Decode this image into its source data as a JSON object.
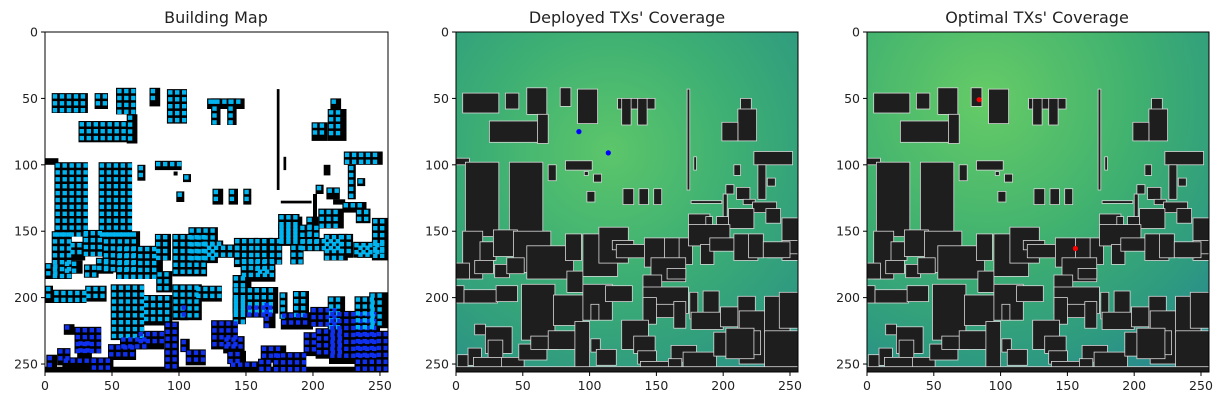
{
  "figure": {
    "panels": [
      {
        "title": "Building Map"
      },
      {
        "title": "Deployed TXs' Coverage"
      },
      {
        "title": "Optimal TXs' Coverage"
      }
    ]
  },
  "chart_data": [
    {
      "type": "heatmap",
      "title": "Building Map",
      "xlabel": "",
      "ylabel": "",
      "xlim": [
        0,
        256
      ],
      "ylim": [
        256,
        0
      ],
      "xticks": [
        0,
        50,
        100,
        150,
        200,
        250
      ],
      "yticks": [
        0,
        50,
        100,
        150,
        200,
        250
      ],
      "grid": false,
      "background_color": "#ffffff",
      "building_color": "#000000",
      "marker_colors": [
        "#00b4f0",
        "#1030f0"
      ]
    },
    {
      "type": "heatmap",
      "title": "Deployed TXs' Coverage",
      "xlabel": "",
      "ylabel": "",
      "xlim": [
        0,
        256
      ],
      "ylim": [
        256,
        0
      ],
      "xticks": [
        0,
        50,
        100,
        150,
        200,
        250
      ],
      "yticks": [
        0,
        50,
        100,
        150,
        200,
        250
      ],
      "grid": false,
      "colormap": [
        "#2a8f8a",
        "#3ba870",
        "#56c36a",
        "#7ad15a"
      ],
      "building_color": "#1e1e1e",
      "transmitters": [
        {
          "x": 92,
          "y": 75,
          "color": "#0000ff"
        },
        {
          "x": 114,
          "y": 91,
          "color": "#0000ff"
        }
      ]
    },
    {
      "type": "heatmap",
      "title": "Optimal TXs' Coverage",
      "xlabel": "",
      "ylabel": "",
      "xlim": [
        0,
        256
      ],
      "ylim": [
        256,
        0
      ],
      "xticks": [
        0,
        50,
        100,
        150,
        200,
        250
      ],
      "yticks": [
        0,
        50,
        100,
        150,
        200,
        250
      ],
      "grid": false,
      "colormap": [
        "#2a8f8a",
        "#3ba870",
        "#56c36a",
        "#7ad15a"
      ],
      "building_color": "#1e1e1e",
      "transmitters": [
        {
          "x": 84,
          "y": 51,
          "color": "#ff0000"
        },
        {
          "x": 156,
          "y": 163,
          "color": "#ff0000"
        }
      ]
    }
  ]
}
